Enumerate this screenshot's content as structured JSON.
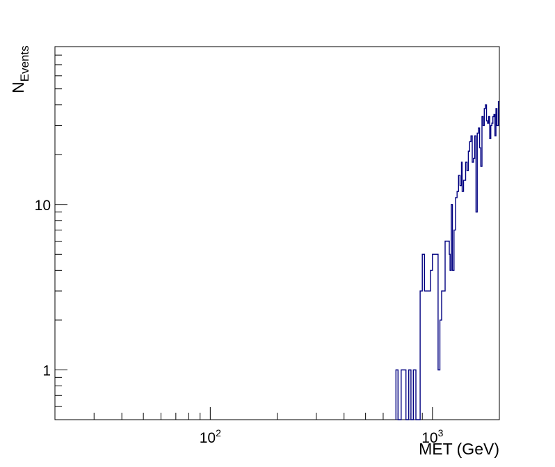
{
  "chart_data": {
    "type": "step",
    "xlabel": "MET (GeV)",
    "ylabel_main": "N",
    "ylabel_sub": "Events",
    "x_scale": "log",
    "y_scale": "log",
    "xlim": [
      20,
      2000
    ],
    "ylim": [
      0.5,
      90
    ],
    "grid": false,
    "x_tick_labels": [
      {
        "base": "10",
        "exp": "2",
        "value": 100
      },
      {
        "base": "10",
        "exp": "3",
        "value": 1000
      }
    ],
    "y_tick_labels": [
      {
        "label": "1",
        "value": 1
      },
      {
        "label": "10",
        "value": 10
      }
    ],
    "series": [
      {
        "color": "#000080",
        "points": [
          [
            685,
            1
          ],
          [
            700,
            0.5
          ],
          [
            723,
            1
          ],
          [
            760,
            0.5
          ],
          [
            782,
            1
          ],
          [
            800,
            0.5
          ],
          [
            820,
            1
          ],
          [
            842,
            0.5
          ],
          [
            880,
            3
          ],
          [
            900,
            5
          ],
          [
            920,
            3
          ],
          [
            960,
            3
          ],
          [
            980,
            4
          ],
          [
            1000,
            5
          ],
          [
            1040,
            5
          ],
          [
            1060,
            1
          ],
          [
            1080,
            2
          ],
          [
            1100,
            3
          ],
          [
            1120,
            3
          ],
          [
            1140,
            6
          ],
          [
            1180,
            6
          ],
          [
            1190,
            5
          ],
          [
            1200,
            4
          ],
          [
            1215,
            10
          ],
          [
            1230,
            4
          ],
          [
            1250,
            7
          ],
          [
            1270,
            11
          ],
          [
            1290,
            12
          ],
          [
            1310,
            15
          ],
          [
            1330,
            13
          ],
          [
            1350,
            18
          ],
          [
            1360,
            12
          ],
          [
            1380,
            14
          ],
          [
            1410,
            18
          ],
          [
            1430,
            16
          ],
          [
            1450,
            21
          ],
          [
            1470,
            24
          ],
          [
            1490,
            26
          ],
          [
            1510,
            18
          ],
          [
            1530,
            19
          ],
          [
            1550,
            26
          ],
          [
            1570,
            9
          ],
          [
            1590,
            27
          ],
          [
            1610,
            29
          ],
          [
            1630,
            22
          ],
          [
            1650,
            17
          ],
          [
            1670,
            34
          ],
          [
            1690,
            30
          ],
          [
            1710,
            38
          ],
          [
            1730,
            40
          ],
          [
            1750,
            32
          ],
          [
            1770,
            31
          ],
          [
            1790,
            34
          ],
          [
            1810,
            25
          ],
          [
            1830,
            30
          ],
          [
            1850,
            31
          ],
          [
            1870,
            34
          ],
          [
            1890,
            35
          ],
          [
            1910,
            26
          ],
          [
            1930,
            38
          ],
          [
            1950,
            30
          ],
          [
            1980,
            42
          ]
        ]
      }
    ]
  }
}
